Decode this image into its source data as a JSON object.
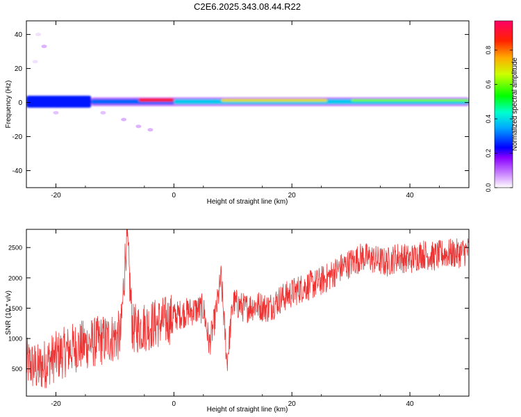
{
  "title": "C2E6.2025.343.08.44.R22",
  "chart_data": [
    {
      "type": "heatmap",
      "xlabel": "Height of straight line (km)",
      "ylabel": "Frequency (Hz)",
      "xlim": [
        -25,
        50
      ],
      "ylim": [
        -50,
        48
      ],
      "xticks": [
        -20,
        0,
        20,
        40
      ],
      "yticks": [
        -40,
        -20,
        0,
        20,
        40
      ],
      "colorbar": {
        "label": "Normalized spectral amplitude",
        "range": [
          0,
          0.97
        ],
        "ticks": [
          0.0,
          0.2,
          0.4,
          0.6,
          0.8
        ],
        "tick_labels": [
          "0.0",
          "0.2",
          "0.4",
          "0.6",
          "0.8"
        ]
      },
      "band_segments": [
        {
          "x": [
            -25,
            -14
          ],
          "y": [
            -3,
            4
          ],
          "amplitude": 0.25
        },
        {
          "x": [
            -14,
            50
          ],
          "y": [
            -2,
            3
          ],
          "amplitude": 0.1
        },
        {
          "x": [
            -14,
            0
          ],
          "y": [
            -1,
            2
          ],
          "amplitude": 0.3
        },
        {
          "x": [
            0,
            50
          ],
          "y": [
            -1,
            2
          ],
          "amplitude": 0.38
        },
        {
          "x": [
            -6,
            0
          ],
          "y": [
            0.5,
            2.5
          ],
          "amplitude": 0.9
        },
        {
          "x": [
            8,
            26
          ],
          "y": [
            0.5,
            2.2
          ],
          "amplitude": 0.7
        },
        {
          "x": [
            30,
            50
          ],
          "y": [
            0.6,
            2
          ],
          "amplitude": 0.6
        }
      ],
      "scattered_patches": [
        {
          "x": -23.5,
          "y": 24,
          "amplitude": 0.02
        },
        {
          "x": -22,
          "y": 33,
          "amplitude": 0.05
        },
        {
          "x": -23,
          "y": 40,
          "amplitude": 0.02
        },
        {
          "x": -8.5,
          "y": -10,
          "amplitude": 0.05
        },
        {
          "x": -6,
          "y": -14,
          "amplitude": 0.05
        },
        {
          "x": -4,
          "y": -16,
          "amplitude": 0.05
        },
        {
          "x": -20,
          "y": -6,
          "amplitude": 0.04
        },
        {
          "x": -12,
          "y": -6,
          "amplitude": 0.04
        }
      ]
    },
    {
      "type": "line",
      "xlabel": "Height of straight line (km)",
      "ylabel": "SNR (10 * v/v)",
      "xlim": [
        -25,
        50
      ],
      "ylim": [
        50,
        2800
      ],
      "xticks": [
        -20,
        0,
        20,
        40
      ],
      "yticks": [
        500,
        1000,
        1500,
        2000,
        2500
      ],
      "color": "#ee3333",
      "x": [
        -25,
        -23,
        -21,
        -19,
        -17,
        -15,
        -13,
        -11,
        -9,
        -8,
        -7,
        -5,
        -3,
        -1,
        1,
        3,
        5,
        6,
        7,
        8,
        9,
        10,
        12,
        14,
        16,
        18,
        20,
        22,
        24,
        26,
        28,
        30,
        32,
        34,
        36,
        38,
        40,
        42,
        44,
        46,
        48,
        50
      ],
      "y": [
        600,
        500,
        650,
        750,
        850,
        900,
        950,
        1000,
        1050,
        2750,
        1150,
        1200,
        1250,
        1300,
        1400,
        1450,
        1500,
        900,
        1350,
        2000,
        600,
        1600,
        1500,
        1550,
        1500,
        1650,
        1750,
        1850,
        1900,
        2000,
        2150,
        2250,
        2350,
        2300,
        2250,
        2350,
        2300,
        2400,
        2350,
        2400,
        2400,
        2450
      ],
      "noise_amplitude": 250
    }
  ]
}
